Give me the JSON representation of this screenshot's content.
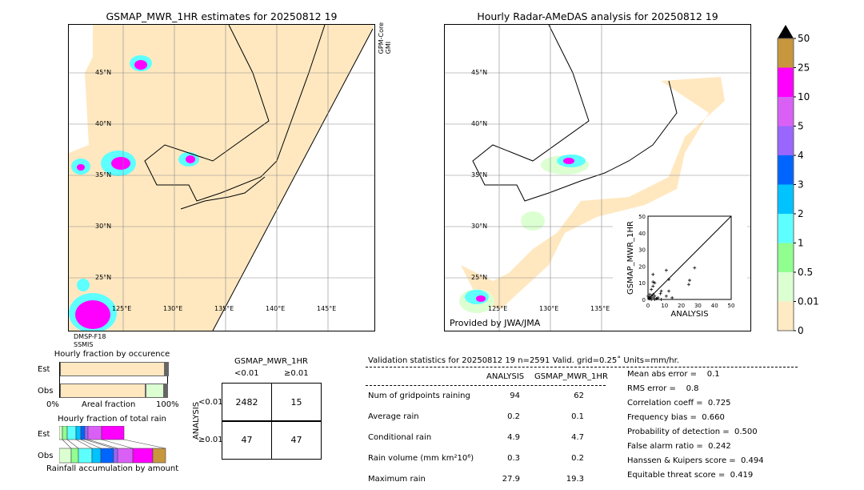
{
  "left_map": {
    "title": "GSMAP_MWR_1HR estimates for 20250812 19",
    "sensor_top": "GPM-Core\nGMI",
    "sensor_bottom_1": "DMSP-F18",
    "sensor_bottom_2": "SSMIS",
    "lat_labels": [
      "45°N",
      "40°N",
      "35°N",
      "30°N",
      "25°N"
    ],
    "lon_labels": [
      "125°E",
      "130°E",
      "135°E",
      "140°E",
      "145°E"
    ]
  },
  "right_map": {
    "title": "Hourly Radar-AMeDAS analysis for 20250812 19",
    "credit": "Provided by JWA/JMA",
    "lat_labels": [
      "45°N",
      "40°N",
      "35°N",
      "30°N",
      "25°N"
    ],
    "lon_labels": [
      "125°E",
      "130°E",
      "135°E"
    ]
  },
  "colorbar": {
    "labels": [
      "50",
      "25",
      "10",
      "5",
      "4",
      "3",
      "2",
      "1",
      "0.5",
      "0.01",
      "0"
    ],
    "colors": [
      "#c8963c",
      "#ff00ff",
      "#da60f5",
      "#9966ff",
      "#0064ff",
      "#00c3ff",
      "#5dffff",
      "#90ff90",
      "#dcffd2",
      "#ffebc3"
    ],
    "extend_color": "#000000"
  },
  "chart_data": {
    "type": "scatter",
    "xlabel": "ANALYSIS",
    "ylabel": "GSMAP_MWR_1HR",
    "xlim": [
      0,
      50
    ],
    "ylim": [
      0,
      50
    ],
    "xticks": [
      "0",
      "10",
      "20",
      "30",
      "40",
      "50"
    ],
    "yticks": [
      "0",
      "10",
      "20",
      "30",
      "40",
      "50"
    ],
    "points": [
      [
        3,
        15
      ],
      [
        11,
        17.5
      ],
      [
        28,
        19
      ],
      [
        12.5,
        12
      ],
      [
        25,
        11.5
      ],
      [
        24.5,
        9
      ],
      [
        3,
        10.5
      ],
      [
        4,
        10
      ],
      [
        3,
        8
      ],
      [
        12.5,
        5
      ],
      [
        8,
        5
      ],
      [
        7.5,
        3.5
      ],
      [
        11,
        2
      ],
      [
        14.5,
        1
      ],
      [
        2,
        6
      ],
      [
        1,
        3
      ],
      [
        2,
        2
      ],
      [
        3,
        1
      ],
      [
        5,
        0.5
      ],
      [
        1,
        0.5
      ],
      [
        0.5,
        1
      ],
      [
        8,
        0
      ],
      [
        4,
        2
      ],
      [
        6,
        1
      ],
      [
        2,
        0
      ],
      [
        0,
        2
      ],
      [
        1,
        1
      ],
      [
        3,
        3
      ],
      [
        4,
        0
      ]
    ]
  },
  "occurrence": {
    "title": "Hourly fraction by occurence",
    "est_label": "Est",
    "obs_label": "Obs",
    "x_left": "0%",
    "x_mid": "Areal fraction",
    "x_right": "100%",
    "est_fractions": [
      0.976,
      0.015,
      0.004,
      0.003,
      0.002
    ],
    "obs_fractions": [
      0.8,
      0.17,
      0.01,
      0.01,
      0.01
    ]
  },
  "total_rain": {
    "title": "Hourly fraction of total rain",
    "est_label": "Est",
    "obs_label": "Obs",
    "footer": "Rainfall accumulation by amount"
  },
  "contingency": {
    "title": "GSMAP_MWR_1HR",
    "col1": "<0.01",
    "col2": "≥0.01",
    "row_axis": "ANALYSIS",
    "row1": "<0.01",
    "row2": "≥0.01",
    "a": "2482",
    "b": "15",
    "c": "47",
    "d": "47"
  },
  "stats": {
    "header": "Validation statistics for 20250812 19  n=2591 Valid. grid=0.25˚ Units=mm/hr.",
    "col1": "ANALYSIS",
    "col2": "GSMAP_MWR_1HR",
    "rows": [
      {
        "label": "Num of gridpoints raining",
        "a": "94",
        "g": "62"
      },
      {
        "label": "Average rain",
        "a": "0.2",
        "g": "0.1"
      },
      {
        "label": "Conditional rain",
        "a": "4.9",
        "g": "4.7"
      },
      {
        "label": "Rain volume (mm km²10⁶)",
        "a": "0.3",
        "g": "0.2"
      },
      {
        "label": "Maximum rain",
        "a": "27.9",
        "g": "19.3"
      }
    ],
    "scores": [
      "Mean abs error =    0.1",
      "RMS error =    0.8",
      "Correlation coeff =  0.725",
      "Frequency bias =  0.660",
      "Probability of detection =  0.500",
      "False alarm ratio =  0.242",
      "Hanssen & Kuipers score =  0.494",
      "Equitable threat score =  0.419"
    ]
  }
}
